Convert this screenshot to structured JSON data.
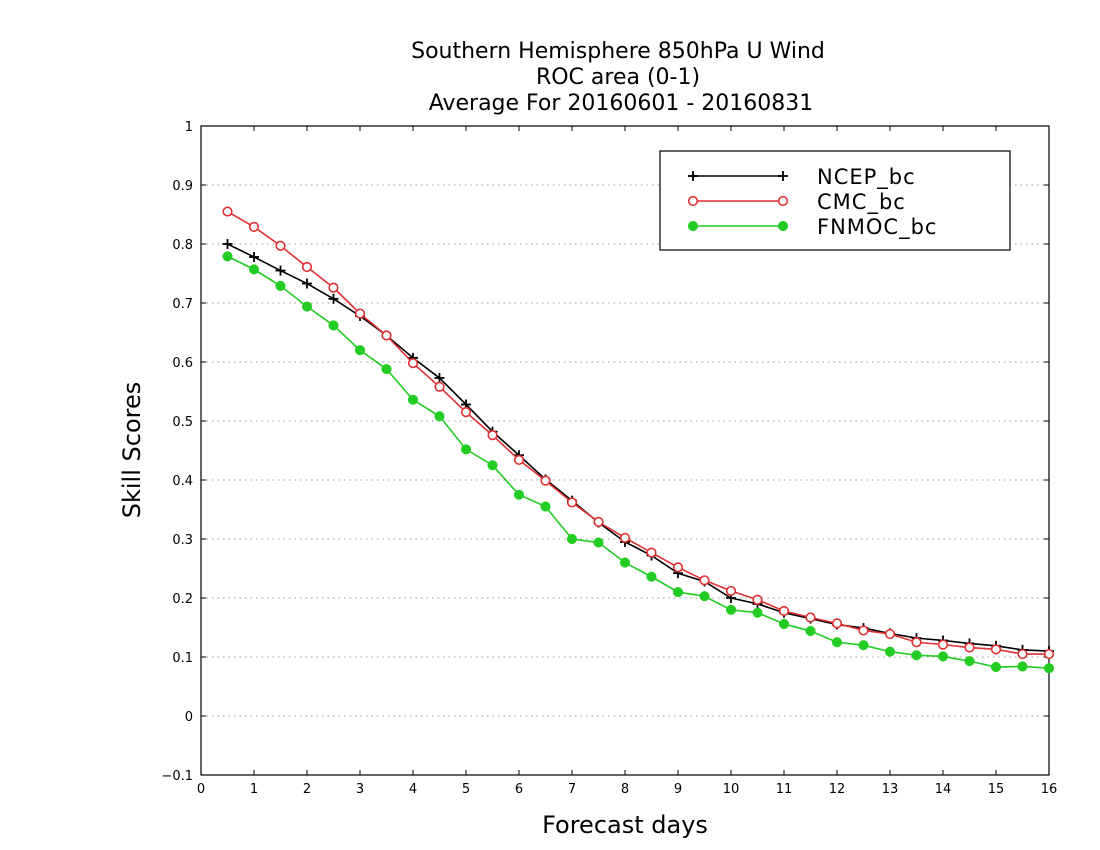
{
  "chart_data": {
    "type": "line",
    "title": [
      "Southern Hemisphere 850hPa U Wind",
      "ROC area (0-1)",
      "Average For 20160601 - 20160831"
    ],
    "xlabel": "Forecast days",
    "ylabel": "Skill Scores",
    "xlim": [
      0,
      16
    ],
    "ylim": [
      -0.1,
      1
    ],
    "xticks": [
      0,
      1,
      2,
      3,
      4,
      5,
      6,
      7,
      8,
      9,
      10,
      11,
      12,
      13,
      14,
      15,
      16
    ],
    "yticks": [
      -0.1,
      0,
      0.1,
      0.2,
      0.3,
      0.4,
      0.5,
      0.6,
      0.7,
      0.8,
      0.9,
      1
    ],
    "ytick_labels": [
      "−0.1",
      "0",
      "0.1",
      "0.2",
      "0.3",
      "0.4",
      "0.5",
      "0.6",
      "0.7",
      "0.8",
      "0.9",
      "1"
    ],
    "grid": true,
    "legend_position": "top-right",
    "x": [
      0.5,
      1,
      1.5,
      2,
      2.5,
      3,
      3.5,
      4,
      4.5,
      5,
      5.5,
      6,
      6.5,
      7,
      7.5,
      8,
      8.5,
      9,
      9.5,
      10,
      10.5,
      11,
      11.5,
      12,
      12.5,
      13,
      13.5,
      14,
      14.5,
      15,
      15.5,
      16
    ],
    "series": [
      {
        "name": "NCEP_bc",
        "color": "#000000",
        "marker": "plus",
        "values": [
          0.8,
          0.778,
          0.755,
          0.733,
          0.707,
          0.678,
          0.645,
          0.607,
          0.573,
          0.528,
          0.482,
          0.442,
          0.401,
          0.365,
          0.328,
          0.295,
          0.272,
          0.242,
          0.228,
          0.2,
          0.19,
          0.175,
          0.165,
          0.155,
          0.149,
          0.14,
          0.132,
          0.128,
          0.123,
          0.119,
          0.112,
          0.11
        ]
      },
      {
        "name": "CMC_bc",
        "color": "#e03030",
        "marker": "open-circle",
        "values": [
          0.855,
          0.829,
          0.797,
          0.761,
          0.726,
          0.682,
          0.645,
          0.598,
          0.558,
          0.515,
          0.476,
          0.434,
          0.399,
          0.362,
          0.329,
          0.302,
          0.277,
          0.252,
          0.23,
          0.212,
          0.197,
          0.178,
          0.167,
          0.157,
          0.145,
          0.139,
          0.125,
          0.121,
          0.116,
          0.113,
          0.105,
          0.105
        ]
      },
      {
        "name": "FNMOC_bc",
        "color": "#22cc22",
        "marker": "filled-circle",
        "values": [
          0.779,
          0.757,
          0.729,
          0.694,
          0.662,
          0.62,
          0.588,
          0.536,
          0.508,
          0.452,
          0.425,
          0.375,
          0.355,
          0.3,
          0.294,
          0.26,
          0.236,
          0.21,
          0.203,
          0.18,
          0.175,
          0.156,
          0.144,
          0.125,
          0.12,
          0.109,
          0.103,
          0.101,
          0.093,
          0.083,
          0.084,
          0.081
        ]
      }
    ]
  }
}
